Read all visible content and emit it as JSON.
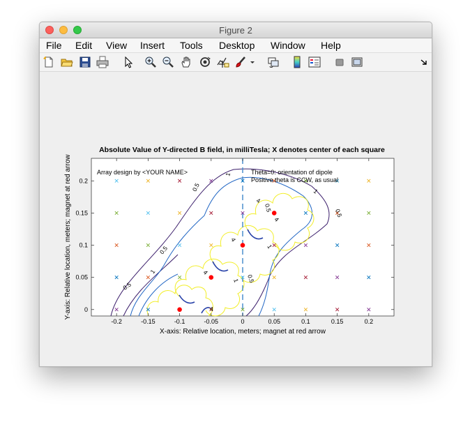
{
  "window": {
    "title": "Figure 2"
  },
  "menu": {
    "items": [
      "File",
      "Edit",
      "View",
      "Insert",
      "Tools",
      "Desktop",
      "Window",
      "Help"
    ]
  },
  "toolbar": {
    "tools": [
      "new-figure-icon",
      "open-file-icon",
      "save-icon",
      "print-icon",
      "edit-plot-arrow-icon",
      "zoom-in-icon",
      "zoom-out-icon",
      "pan-hand-icon",
      "rotate-3d-icon",
      "data-cursor-icon",
      "brush-icon",
      "brush-menu-arrow-icon",
      "link-plot-icon",
      "colorbar-icon",
      "legend-icon",
      "hide-plot-tools-icon",
      "show-plot-tools-icon",
      "dock-arrow-icon"
    ]
  },
  "colors": {
    "contour_05": "#3b1e6b",
    "contour_1": "#2166c4",
    "contour_4": "#f2ee2a",
    "magnet": "#ff0000",
    "center_line": "#4b8fce"
  },
  "chart_data": {
    "type": "contour",
    "title": "Absolute Value of Y-directed B field, in milliTesla;  X denotes center of each square",
    "xlabel": "X-axis: Relative location, meters;  magnet at red arrow",
    "ylabel": "Y-axis: Relative location, meters;  magnet at red arrow",
    "xlim": [
      -0.24,
      0.24
    ],
    "ylim": [
      -0.01,
      0.235
    ],
    "xticks": [
      -0.2,
      -0.15,
      -0.1,
      -0.05,
      0,
      0.05,
      0.1,
      0.15,
      0.2
    ],
    "xtick_labels": [
      "-0.2",
      "-0.15",
      "-0.1",
      "-0.05",
      "0",
      "0.05",
      "0.1",
      "0.15",
      "0.2"
    ],
    "yticks": [
      0,
      0.05,
      0.1,
      0.15,
      0.2
    ],
    "ytick_labels": [
      "0",
      "0.05",
      "0.1",
      "0.15",
      "0.2"
    ],
    "grid": false,
    "annotations": [
      "Array design by <YOUR NAME>",
      "Theta=0: orientation of dipole",
      "Positive theta is CCW, as usual"
    ],
    "contour_levels": [
      "0.5",
      "1",
      "4"
    ],
    "magnets": [
      {
        "x": -0.1,
        "y": 0
      },
      {
        "x": -0.05,
        "y": 0.05
      },
      {
        "x": 0,
        "y": 0.1
      },
      {
        "x": 0.05,
        "y": 0.15
      }
    ],
    "marker_x": [
      -0.2,
      -0.15,
      -0.1,
      -0.05,
      0,
      0.05,
      0.1,
      0.15,
      0.2
    ],
    "marker_y": [
      0,
      0.05,
      0.1,
      0.15,
      0.2
    ],
    "center_line_x": 0
  }
}
